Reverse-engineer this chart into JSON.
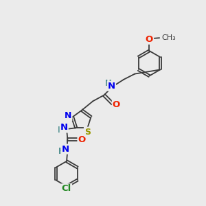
{
  "background_color": "#ebebeb",
  "bond_color": "#3a3a3a",
  "atoms": {
    "Cl": {
      "color": "#228822",
      "fontsize": 9.5
    },
    "S": {
      "color": "#999900",
      "fontsize": 9.5
    },
    "N": {
      "color": "#0000ee",
      "fontsize": 9.5
    },
    "O": {
      "color": "#ee2200",
      "fontsize": 9.5
    },
    "H": {
      "color": "#448888",
      "fontsize": 8.5
    }
  },
  "figsize": [
    3.0,
    3.0
  ],
  "dpi": 100
}
